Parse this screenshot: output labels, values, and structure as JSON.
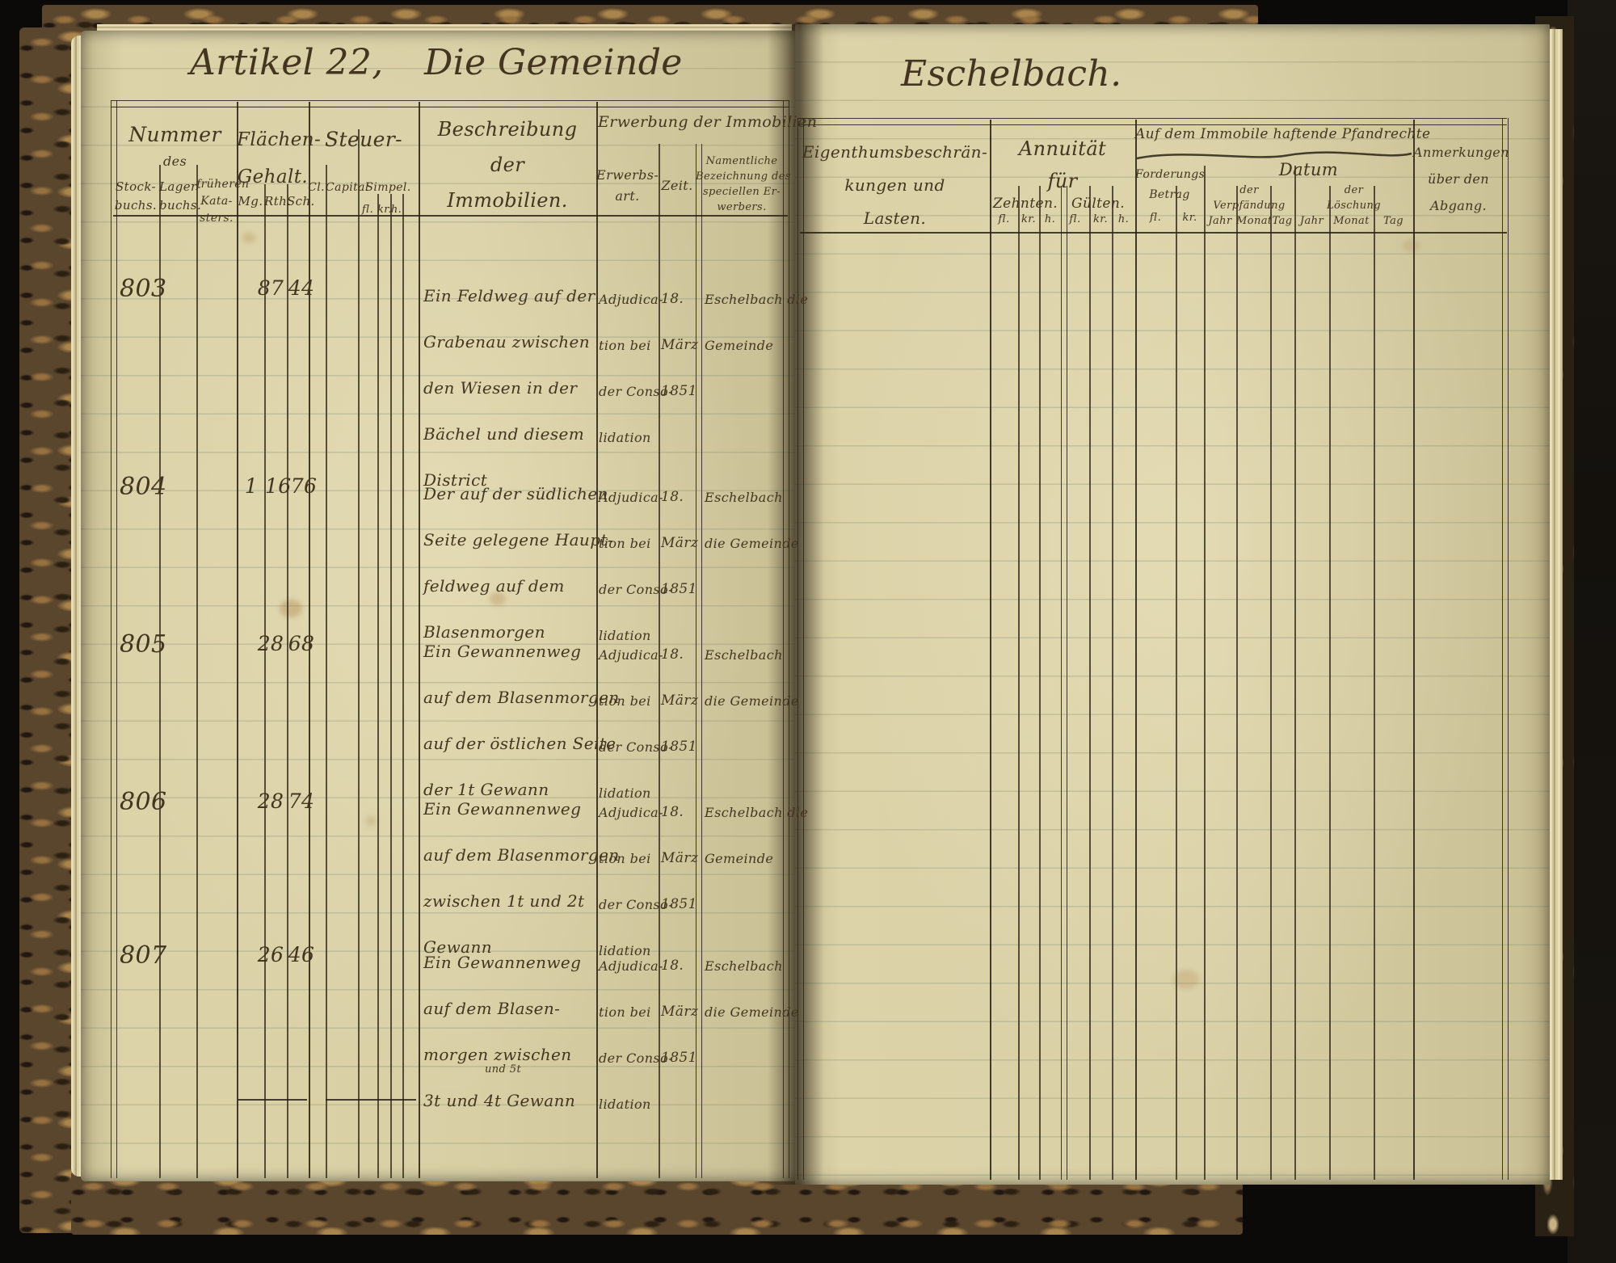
{
  "titles": {
    "article": "Artikel 22,",
    "subject": "Die Gemeinde",
    "place": "Eschelbach."
  },
  "left_header": {
    "nummer": "Nummer",
    "des": "des",
    "stockbuchs": [
      "Stock-",
      "buchs."
    ],
    "lagerbuchs": [
      "Lager-",
      "buchs."
    ],
    "kataster": [
      "früheren",
      "Kata-",
      "sters."
    ],
    "flaechen": [
      "Flächen-",
      "Gehalt."
    ],
    "flaechen_sub": [
      "Mg.",
      "Rth.",
      "Sch."
    ],
    "steuer": "Steuer-",
    "steuer_sub": [
      "Cl.",
      "Capital",
      "Simpel."
    ],
    "geld_sub": [
      "fl.",
      "kr.",
      "h."
    ],
    "beschreibung": [
      "Beschreibung",
      "der",
      "Immobilien."
    ],
    "erwerbung": "Erwerbung der Immobilien",
    "erwerbsart": [
      "Erwerbs-",
      "art."
    ],
    "zeit": "Zeit.",
    "erwerber": [
      "Namentliche",
      "Bezeichnung des",
      "speciellen Er-",
      "werbers."
    ]
  },
  "right_header": {
    "lasten": [
      "Eigenthumsbeschrän-",
      "kungen und",
      "Lasten."
    ],
    "annuitaet": [
      "Annuität",
      "für"
    ],
    "zehnten": "Zehnten.",
    "guelten": "Gülten.",
    "geld_sub_zehnten": [
      "fl.",
      "kr.",
      "h."
    ],
    "geld_sub_guelten": [
      "fl.",
      "kr.",
      "h."
    ],
    "pfand": "Auf dem Immobile haftende Pfandrechte",
    "forderung": [
      "Forderungs",
      "Betrag"
    ],
    "forderung_sub": [
      "fl.",
      "kr."
    ],
    "datum": "Datum",
    "verpfaendung": [
      "der",
      "Verpfändung"
    ],
    "loeschung": [
      "der",
      "Löschung"
    ],
    "datum_sub_verpf": [
      "Jahr",
      "Monat",
      "Tag"
    ],
    "datum_sub_loesch": [
      "Jahr",
      "Monat",
      "Tag"
    ],
    "anmerkungen": [
      "Anmerkungen",
      "über den",
      "Abgang."
    ]
  },
  "rows": [
    {
      "number": "803",
      "mg": "",
      "rth": "87",
      "sch": "44",
      "desc": [
        "Ein Feldweg auf der",
        "Grabenau zwischen",
        "den Wiesen in der",
        "Bächel und diesem",
        "District"
      ],
      "art": [
        "Adjudica-",
        "tion bei",
        "der Conso-",
        "lidation"
      ],
      "zeit": [
        "18.",
        "März",
        "1851"
      ],
      "erwerber": [
        "Eschelbach die",
        "Gemeinde"
      ]
    },
    {
      "number": "804",
      "mg": "1",
      "rth": "16",
      "sch": "76",
      "desc": [
        "Der auf der südlichen",
        "Seite gelegene Haupt-",
        "feldweg auf dem",
        "Blasenmorgen"
      ],
      "art": [
        "Adjudica-",
        "tion bei",
        "der Conso-",
        "lidation"
      ],
      "zeit": [
        "18.",
        "März",
        "1851"
      ],
      "erwerber": [
        "Eschelbach",
        "die Gemeinde"
      ]
    },
    {
      "number": "805",
      "mg": "",
      "rth": "28",
      "sch": "68",
      "desc": [
        "Ein Gewannenweg",
        "auf dem Blasenmorgen",
        "auf der östlichen Seite",
        "der 1t Gewann"
      ],
      "art": [
        "Adjudica-",
        "tion bei",
        "der Conso-",
        "lidation"
      ],
      "zeit": [
        "18.",
        "März",
        "1851"
      ],
      "erwerber": [
        "Eschelbach",
        "die Gemeinde"
      ]
    },
    {
      "number": "806",
      "mg": "",
      "rth": "28",
      "sch": "74",
      "desc": [
        "Ein Gewannenweg",
        "auf dem Blasenmorgen",
        "zwischen 1t und 2t",
        "Gewann"
      ],
      "art": [
        "Adjudica-",
        "tion bei",
        "der Conso-",
        "lidation"
      ],
      "zeit": [
        "18.",
        "März",
        "1851"
      ],
      "erwerber": [
        "Eschelbach die",
        "Gemeinde"
      ]
    },
    {
      "number": "807",
      "mg": "",
      "rth": "26",
      "sch": "46",
      "desc": [
        "Ein Gewannenweg",
        "auf dem Blasen-",
        "morgen zwischen",
        "3t und 4t Gewann"
      ],
      "insert": "und 5t",
      "art": [
        "Adjudica-",
        "tion bei",
        "der Conso-",
        "lidation"
      ],
      "zeit": [
        "18.",
        "März",
        "1851"
      ],
      "erwerber": [
        "Eschelbach",
        "die Gemeinde"
      ]
    }
  ]
}
